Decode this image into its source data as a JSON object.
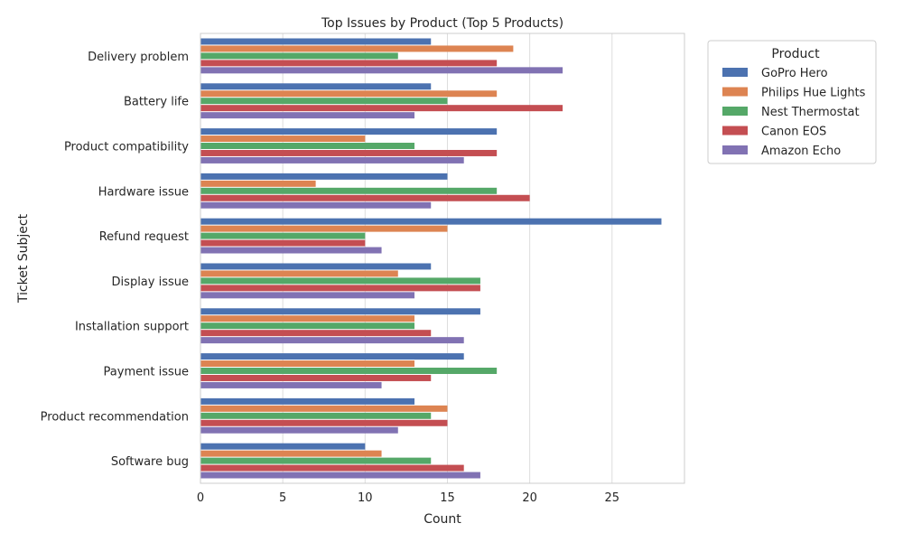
{
  "chart_data": {
    "type": "bar",
    "orientation": "horizontal",
    "title": "Top Issues by Product (Top 5 Products)",
    "xlabel": "Count",
    "ylabel": "Ticket Subject",
    "xlim": [
      0,
      29.4
    ],
    "xticks": [
      0,
      5,
      10,
      15,
      20,
      25
    ],
    "grid": true,
    "legend_title": "Product",
    "legend_position": "outside-right",
    "categories": [
      "Delivery problem",
      "Battery life",
      "Product compatibility",
      "Hardware issue",
      "Refund request",
      "Display issue",
      "Installation support",
      "Payment issue",
      "Product recommendation",
      "Software bug"
    ],
    "series": [
      {
        "name": "GoPro Hero",
        "color": "#4c72b0",
        "values": [
          14,
          14,
          18,
          15,
          28,
          14,
          17,
          16,
          13,
          10
        ]
      },
      {
        "name": "Philips Hue Lights",
        "color": "#dd8452",
        "values": [
          19,
          18,
          10,
          7,
          15,
          12,
          13,
          13,
          15,
          11
        ]
      },
      {
        "name": "Nest Thermostat",
        "color": "#55a868",
        "values": [
          12,
          15,
          13,
          18,
          10,
          17,
          13,
          18,
          14,
          14
        ]
      },
      {
        "name": "Canon EOS",
        "color": "#c44e52",
        "values": [
          18,
          22,
          18,
          20,
          10,
          17,
          14,
          14,
          15,
          16
        ]
      },
      {
        "name": "Amazon Echo",
        "color": "#8172b3",
        "values": [
          22,
          13,
          16,
          14,
          11,
          13,
          16,
          11,
          12,
          17
        ]
      }
    ]
  }
}
